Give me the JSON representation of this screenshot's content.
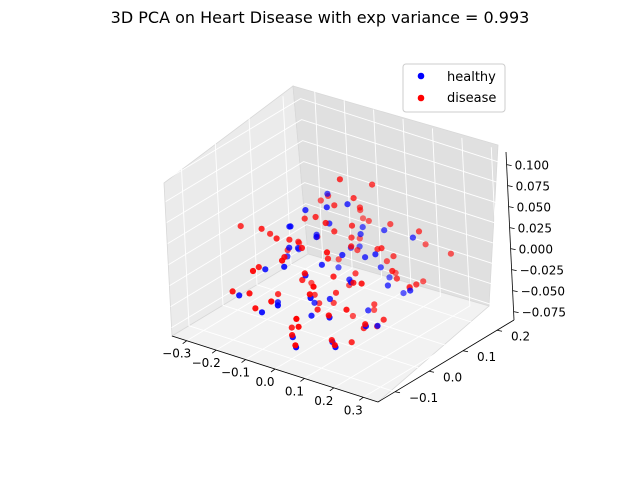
{
  "chart_data": {
    "type": "scatter",
    "projection": "3d",
    "title": "3D PCA on Heart Disease with exp variance = 0.993",
    "xlabel": "",
    "ylabel": "",
    "zlabel": "",
    "x_ticks": [
      "−0.3",
      "−0.2",
      "−0.1",
      "0.0",
      "0.1",
      "0.2",
      "0.3"
    ],
    "y_ticks": [
      "−0.1",
      "0.0",
      "0.1",
      "0.2"
    ],
    "z_ticks": [
      "−0.075",
      "−0.050",
      "−0.025",
      "0.000",
      "0.025",
      "0.050",
      "0.075",
      "0.100"
    ],
    "xlim": [
      -0.35,
      0.35
    ],
    "ylim": [
      -0.15,
      0.25
    ],
    "zlim": [
      -0.085,
      0.115
    ],
    "legend": {
      "position": "upper-right",
      "entries": [
        "healthy",
        "disease"
      ]
    },
    "series": [
      {
        "name": "healthy",
        "color": "#0000ff",
        "points": [
          [
            -0.05,
            0.0,
            0.062
          ],
          [
            0.0,
            0.02,
            0.066
          ],
          [
            -0.08,
            -0.02,
            0.044
          ],
          [
            0.02,
            -0.03,
            0.045
          ],
          [
            -0.03,
            0.05,
            0.036
          ],
          [
            0.07,
            0.0,
            0.022
          ],
          [
            -0.12,
            0.01,
            0.032
          ],
          [
            0.04,
            0.08,
            0.024
          ],
          [
            -0.06,
            -0.06,
            0.008
          ],
          [
            0.1,
            0.04,
            0.013
          ],
          [
            0.0,
            -0.05,
            0.002
          ],
          [
            -0.1,
            0.07,
            0.01
          ],
          [
            0.05,
            -0.08,
            -0.012
          ],
          [
            -0.02,
            0.1,
            -0.004
          ],
          [
            0.12,
            -0.02,
            0.0
          ],
          [
            -0.15,
            -0.04,
            -0.01
          ],
          [
            0.08,
            0.1,
            -0.016
          ],
          [
            -0.04,
            -0.1,
            -0.026
          ],
          [
            0.15,
            0.06,
            -0.02
          ],
          [
            -0.18,
            0.05,
            -0.02
          ],
          [
            0.02,
            0.0,
            -0.036
          ],
          [
            0.1,
            -0.07,
            -0.032
          ],
          [
            -0.09,
            0.12,
            -0.04
          ],
          [
            0.06,
            0.14,
            -0.04
          ],
          [
            -0.12,
            -0.08,
            -0.048
          ],
          [
            0.18,
            0.0,
            -0.05
          ],
          [
            -0.01,
            -0.03,
            -0.052
          ],
          [
            0.09,
            0.05,
            -0.054
          ],
          [
            -0.07,
            0.03,
            -0.058
          ],
          [
            0.04,
            -0.12,
            -0.062
          ],
          [
            0.13,
            0.12,
            -0.046
          ],
          [
            -0.16,
            0.0,
            -0.06
          ],
          [
            0.2,
            -0.05,
            -0.036
          ],
          [
            -0.2,
            0.1,
            -0.026
          ],
          [
            0.11,
            0.09,
            0.034
          ],
          [
            -0.08,
            0.09,
            0.056
          ],
          [
            0.16,
            0.02,
            0.028
          ],
          [
            0.03,
            0.05,
            -0.024
          ],
          [
            -0.03,
            -0.07,
            -0.07
          ],
          [
            0.07,
            -0.04,
            -0.072
          ],
          [
            0.25,
            0.04,
            -0.01
          ],
          [
            -0.22,
            -0.06,
            -0.044
          ],
          [
            0.0,
            0.12,
            0.018
          ],
          [
            -0.13,
            0.04,
            -0.002
          ],
          [
            0.14,
            -0.09,
            -0.058
          ],
          [
            -0.05,
            0.15,
            -0.018
          ],
          [
            0.22,
            0.08,
            0.04
          ],
          [
            0.06,
            0.03,
            0.074
          ],
          [
            -0.1,
            -0.01,
            0.014
          ],
          [
            0.01,
            -0.01,
            0.006
          ]
        ]
      },
      {
        "name": "disease",
        "color": "#ff0000",
        "points": [
          [
            -0.04,
            0.02,
            0.05
          ],
          [
            0.03,
            -0.01,
            0.058
          ],
          [
            -0.09,
            0.03,
            0.04
          ],
          [
            0.06,
            0.04,
            0.046
          ],
          [
            -0.02,
            -0.04,
            0.03
          ],
          [
            0.09,
            0.01,
            0.032
          ],
          [
            -0.13,
            -0.02,
            0.024
          ],
          [
            0.02,
            0.07,
            0.02
          ],
          [
            -0.07,
            -0.05,
            0.016
          ],
          [
            0.12,
            0.06,
            0.02
          ],
          [
            0.01,
            -0.06,
            0.008
          ],
          [
            -0.11,
            0.08,
            0.004
          ],
          [
            0.06,
            -0.09,
            -0.004
          ],
          [
            -0.01,
            0.11,
            -0.008
          ],
          [
            0.14,
            -0.03,
            0.004
          ],
          [
            -0.16,
            -0.05,
            -0.006
          ],
          [
            0.09,
            0.11,
            -0.01
          ],
          [
            -0.05,
            -0.11,
            -0.02
          ],
          [
            0.17,
            0.07,
            -0.012
          ],
          [
            -0.19,
            0.06,
            -0.016
          ],
          [
            0.03,
            0.01,
            -0.03
          ],
          [
            0.11,
            -0.08,
            -0.026
          ],
          [
            -0.1,
            0.13,
            -0.034
          ],
          [
            0.07,
            0.15,
            -0.036
          ],
          [
            -0.13,
            -0.09,
            -0.042
          ],
          [
            0.19,
            0.01,
            -0.044
          ],
          [
            0.0,
            -0.02,
            -0.046
          ],
          [
            0.1,
            0.06,
            -0.048
          ],
          [
            -0.08,
            0.04,
            -0.052
          ],
          [
            0.05,
            -0.13,
            -0.056
          ],
          [
            0.14,
            0.13,
            -0.04
          ],
          [
            -0.17,
            0.01,
            -0.054
          ],
          [
            0.21,
            -0.06,
            -0.03
          ],
          [
            -0.21,
            0.11,
            -0.022
          ],
          [
            0.12,
            0.1,
            0.04
          ],
          [
            -0.09,
            0.1,
            0.05
          ],
          [
            0.17,
            0.03,
            0.034
          ],
          [
            0.04,
            0.06,
            -0.018
          ],
          [
            -0.02,
            -0.08,
            -0.064
          ],
          [
            0.08,
            -0.05,
            -0.066
          ],
          [
            0.26,
            0.05,
            -0.004
          ],
          [
            -0.23,
            -0.07,
            -0.038
          ],
          [
            0.01,
            0.13,
            0.024
          ],
          [
            -0.14,
            0.05,
            0.002
          ],
          [
            0.15,
            -0.1,
            -0.052
          ],
          [
            -0.06,
            0.16,
            -0.012
          ],
          [
            0.23,
            0.09,
            0.046
          ],
          [
            0.07,
            0.04,
            0.08
          ],
          [
            -0.11,
            0.0,
            0.02
          ],
          [
            0.02,
            0.0,
            0.012
          ],
          [
            -0.04,
            0.06,
            -0.062
          ],
          [
            0.05,
            0.1,
            -0.07
          ],
          [
            -0.08,
            -0.03,
            -0.074
          ],
          [
            0.1,
            -0.01,
            -0.076
          ],
          [
            0.0,
            0.08,
            -0.078
          ],
          [
            -0.03,
            -0.09,
            0.026
          ],
          [
            0.13,
            0.04,
            -0.066
          ],
          [
            -0.15,
            0.09,
            -0.058
          ],
          [
            0.18,
            -0.04,
            0.01
          ],
          [
            -0.18,
            -0.02,
            0.03
          ],
          [
            0.08,
            0.18,
            -0.06
          ],
          [
            -0.07,
            0.18,
            0.006
          ],
          [
            0.2,
            0.12,
            -0.024
          ],
          [
            0.11,
            -0.12,
            0.018
          ],
          [
            -0.12,
            -0.1,
            0.006
          ],
          [
            0.04,
            -0.11,
            -0.04
          ],
          [
            -0.2,
            0.02,
            0.012
          ],
          [
            0.24,
            0.0,
            0.022
          ],
          [
            0.01,
            0.03,
            0.036
          ],
          [
            -0.06,
            -0.01,
            -0.02
          ],
          [
            0.06,
            -0.02,
            0.0
          ],
          [
            -0.01,
            0.05,
            0.06
          ],
          [
            0.03,
            0.09,
            0.052
          ],
          [
            0.15,
            0.08,
            0.01
          ],
          [
            -0.14,
            0.12,
            0.034
          ],
          [
            0.09,
            -0.06,
            0.042
          ],
          [
            -0.09,
            0.06,
            -0.068
          ],
          [
            0.16,
            -0.07,
            -0.016
          ],
          [
            -0.3,
            0.02,
            0.01
          ],
          [
            0.3,
            0.12,
            0.02
          ],
          [
            0.05,
            0.02,
            0.105
          ],
          [
            0.1,
            0.07,
            0.092
          ],
          [
            -0.02,
            0.09,
            -0.046
          ],
          [
            0.12,
            0.01,
            -0.062
          ],
          [
            -0.16,
            -0.08,
            -0.03
          ],
          [
            0.07,
            -0.14,
            -0.02
          ],
          [
            -0.03,
            0.14,
            0.03
          ],
          [
            0.19,
            0.14,
            0.014
          ]
        ]
      }
    ]
  }
}
